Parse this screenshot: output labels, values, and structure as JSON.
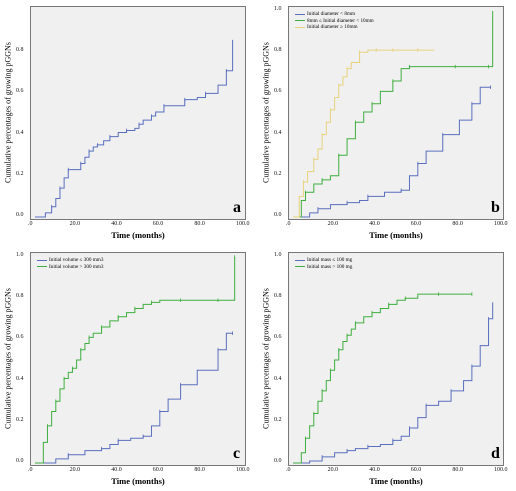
{
  "chart_data": [
    {
      "panel": "a",
      "type": "line",
      "ylabel": "Cumulative percentages of growing pGGNs",
      "xlabel": "Time (months)",
      "xlim": [
        0,
        100
      ],
      "ylim": [
        0,
        1.0
      ],
      "xticks": [
        ".0",
        "20.0",
        "40.0",
        "60.0",
        "80.0",
        "100.0"
      ],
      "yticks": [
        "0.0",
        "0.2",
        "0.4",
        "0.6",
        "0.8"
      ],
      "legend": [],
      "series": [
        {
          "name": "",
          "color": "#5a6fbf",
          "x": [
            0,
            5,
            8,
            10,
            12,
            14,
            16,
            18,
            22,
            24,
            26,
            28,
            30,
            33,
            36,
            40,
            44,
            48,
            50,
            52,
            56,
            58,
            62,
            66,
            72,
            78,
            82,
            88,
            92,
            95
          ],
          "y": [
            0.0,
            0.02,
            0.05,
            0.09,
            0.14,
            0.19,
            0.23,
            0.23,
            0.26,
            0.29,
            0.32,
            0.34,
            0.35,
            0.37,
            0.39,
            0.41,
            0.42,
            0.43,
            0.45,
            0.47,
            0.49,
            0.51,
            0.54,
            0.54,
            0.57,
            0.58,
            0.6,
            0.64,
            0.71,
            0.86
          ]
        }
      ]
    },
    {
      "panel": "b",
      "type": "line",
      "ylabel": "Cumulative percentages of growing pGGNs",
      "xlabel": "Time (months)",
      "xlim": [
        0,
        100
      ],
      "ylim": [
        0,
        1.0
      ],
      "xticks": [
        ".0",
        "20.0",
        "40.0",
        "60.0",
        "80.0",
        "100.0"
      ],
      "yticks": [
        "0.0",
        "0.2",
        "0.4",
        "0.6",
        "0.8",
        "1.0"
      ],
      "legend": [
        "Initial diameter < 8mm",
        "8mm ≤ Initial diameter < 10mm",
        "Initial diameter ≥ 10mm"
      ],
      "series": [
        {
          "name": "Initial diameter < 8mm",
          "color": "#5a6fbf",
          "x": [
            0,
            8,
            12,
            18,
            26,
            32,
            36,
            44,
            52,
            56,
            60,
            64,
            72,
            80,
            86,
            90,
            95
          ],
          "y": [
            0.0,
            0.02,
            0.04,
            0.06,
            0.07,
            0.08,
            0.1,
            0.12,
            0.13,
            0.2,
            0.26,
            0.32,
            0.4,
            0.47,
            0.55,
            0.63,
            0.63
          ]
        },
        {
          "name": "8mm ≤ Initial diameter < 10mm",
          "color": "#3fae3f",
          "x": [
            0,
            4,
            6,
            10,
            14,
            18,
            22,
            26,
            30,
            34,
            38,
            42,
            48,
            52,
            56,
            70,
            78,
            88,
            94,
            96
          ],
          "y": [
            0.0,
            0.08,
            0.12,
            0.16,
            0.18,
            0.2,
            0.3,
            0.38,
            0.46,
            0.51,
            0.55,
            0.61,
            0.66,
            0.72,
            0.73,
            0.73,
            0.73,
            0.73,
            0.73,
            1.0
          ]
        },
        {
          "name": "Initial diameter ≥ 10mm",
          "color": "#e8d27c",
          "x": [
            0,
            3,
            5,
            7,
            10,
            12,
            14,
            16,
            18,
            20,
            22,
            24,
            26,
            28,
            32,
            36,
            40,
            44,
            48,
            52,
            60,
            68
          ],
          "y": [
            0.0,
            0.1,
            0.17,
            0.22,
            0.28,
            0.33,
            0.4,
            0.46,
            0.52,
            0.58,
            0.64,
            0.68,
            0.72,
            0.75,
            0.8,
            0.81,
            0.81,
            0.81,
            0.81,
            0.81,
            0.81,
            0.81
          ]
        }
      ]
    },
    {
      "panel": "c",
      "type": "line",
      "ylabel": "Cumulative percentages of growing pGGNs",
      "xlabel": "Time (months)",
      "xlim": [
        0,
        100
      ],
      "ylim": [
        0,
        1.0
      ],
      "xticks": [
        ".0",
        "20.0",
        "40.0",
        "60.0",
        "80.0",
        "100.0"
      ],
      "yticks": [
        "0.0",
        "0.2",
        "0.4",
        "0.6",
        "0.8",
        "1.0"
      ],
      "legend": [
        "Initial volume ≤ 300 mm3",
        "Initial volume > 300 mm3"
      ],
      "series": [
        {
          "name": "Initial volume ≤ 300 mm3",
          "color": "#5a6fbf",
          "x": [
            0,
            10,
            16,
            24,
            32,
            36,
            40,
            46,
            52,
            56,
            60,
            64,
            70,
            78,
            88,
            92,
            95
          ],
          "y": [
            0.0,
            0.02,
            0.04,
            0.06,
            0.07,
            0.09,
            0.11,
            0.12,
            0.13,
            0.18,
            0.25,
            0.31,
            0.38,
            0.45,
            0.55,
            0.63,
            0.63
          ]
        },
        {
          "name": "Initial volume > 300 mm3",
          "color": "#3fae3f",
          "x": [
            0,
            4,
            6,
            8,
            10,
            12,
            14,
            16,
            18,
            20,
            22,
            24,
            26,
            28,
            32,
            36,
            40,
            44,
            48,
            52,
            56,
            60,
            70,
            80,
            88,
            94,
            96
          ],
          "y": [
            0.0,
            0.1,
            0.18,
            0.25,
            0.3,
            0.36,
            0.41,
            0.44,
            0.46,
            0.5,
            0.55,
            0.58,
            0.61,
            0.63,
            0.66,
            0.69,
            0.71,
            0.73,
            0.75,
            0.77,
            0.78,
            0.79,
            0.79,
            0.79,
            0.79,
            0.79,
            1.0
          ]
        }
      ]
    },
    {
      "panel": "d",
      "type": "line",
      "ylabel": "Cumulative percentages of growing pGGNs",
      "xlabel": "Time (months)",
      "xlim": [
        0,
        100
      ],
      "ylim": [
        0,
        1.0
      ],
      "xticks": [
        ".0",
        "20.0",
        "40.0",
        "60.0",
        "80.0",
        "100.0"
      ],
      "yticks": [
        "0.0",
        "0.2",
        "0.4",
        "0.6",
        "0.8",
        "1.0"
      ],
      "legend": [
        "Initial mass ≤ 100 mg",
        "Initial mass > 100 mg"
      ],
      "series": [
        {
          "name": "Initial mass ≤ 100 mg",
          "color": "#5a6fbf",
          "x": [
            0,
            8,
            14,
            20,
            26,
            30,
            36,
            42,
            48,
            52,
            56,
            60,
            64,
            70,
            76,
            82,
            86,
            90,
            94,
            96
          ],
          "y": [
            0.0,
            0.01,
            0.03,
            0.05,
            0.06,
            0.07,
            0.08,
            0.09,
            0.11,
            0.13,
            0.17,
            0.22,
            0.28,
            0.3,
            0.35,
            0.4,
            0.47,
            0.57,
            0.7,
            0.78
          ]
        },
        {
          "name": "Initial mass > 100 mg",
          "color": "#3fae3f",
          "x": [
            0,
            4,
            6,
            8,
            10,
            12,
            14,
            16,
            18,
            20,
            22,
            24,
            26,
            28,
            30,
            34,
            38,
            42,
            46,
            50,
            54,
            60,
            70,
            80,
            86
          ],
          "y": [
            0.0,
            0.05,
            0.12,
            0.18,
            0.24,
            0.3,
            0.35,
            0.4,
            0.45,
            0.5,
            0.55,
            0.59,
            0.62,
            0.65,
            0.68,
            0.71,
            0.73,
            0.75,
            0.77,
            0.79,
            0.8,
            0.82,
            0.82,
            0.82,
            0.82
          ]
        }
      ]
    }
  ]
}
